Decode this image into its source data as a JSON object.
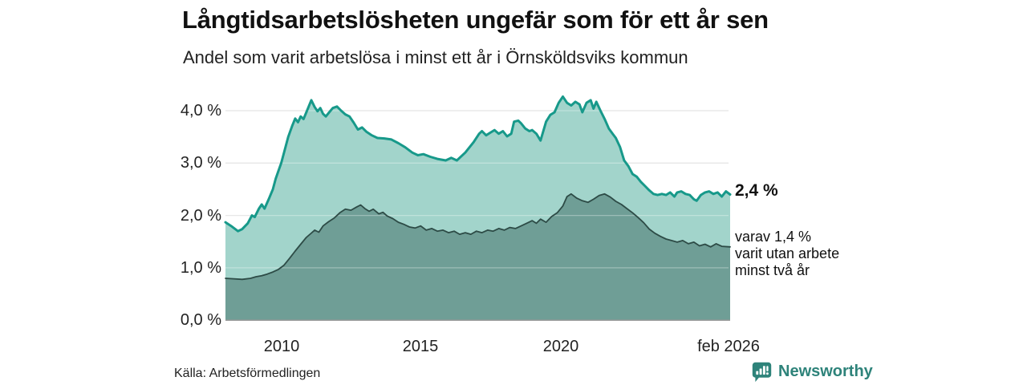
{
  "header": {
    "title": "Långtidsarbetslösheten ungefär som för ett år sen",
    "subtitle": "Andel som varit arbetslösa i minst ett år i Örnsköldsviks kommun"
  },
  "annotations": {
    "total_end_label": "2,4 %",
    "breakdown_lines": [
      "varav 1,4 %",
      "varit utan arbete",
      "minst två år"
    ]
  },
  "footer": {
    "source": "Källa: Arbetsförmedlingen",
    "brand": "Newsworthy"
  },
  "colors": {
    "accent_line": "#17998a",
    "fill_light": "#a2d4cb",
    "fill_dark": "#6f9e96",
    "line_dark": "#2d4b46",
    "grid": "#dcdcdc",
    "grid_overlay": "rgba(255,255,255,0.32)",
    "baseline": "#999999",
    "brand_teal": "#2e837a",
    "text": "#111111"
  },
  "chart_data": {
    "type": "area",
    "title": "Långtidsarbetslösheten ungefär som för ett år sen",
    "subtitle": "Andel som varit arbetslösa i minst ett år i Örnsköldsviks kommun",
    "xlabel": "",
    "ylabel": "",
    "grid": true,
    "xlim": [
      2008.0,
      2026.1
    ],
    "ylim": [
      0,
      4.4
    ],
    "x_ticks": [
      {
        "year": 2010,
        "label": "2010"
      },
      {
        "year": 2015,
        "label": "2015"
      },
      {
        "year": 2020,
        "label": "2020"
      },
      {
        "year": 2026.08,
        "label": "feb 2026"
      }
    ],
    "y_ticks": [
      {
        "value": 4,
        "label": "4,0 %"
      },
      {
        "value": 3,
        "label": "3,0 %"
      },
      {
        "value": 2,
        "label": "2,0 %"
      },
      {
        "value": 1,
        "label": "1,0 %"
      },
      {
        "value": 0,
        "label": "0,0 %"
      }
    ],
    "series": [
      {
        "name": "arbetslösa minst ett år",
        "end_value_label": "2,4 %",
        "fill": "#a2d4cb",
        "line": "#17998a",
        "line_width": 3,
        "points": [
          [
            2008,
            1.87
          ],
          [
            2008.2,
            1.8
          ],
          [
            2008.45,
            1.7
          ],
          [
            2008.6,
            1.74
          ],
          [
            2008.8,
            1.85
          ],
          [
            2008.95,
            2.0
          ],
          [
            2009.05,
            1.97
          ],
          [
            2009.2,
            2.13
          ],
          [
            2009.3,
            2.21
          ],
          [
            2009.4,
            2.13
          ],
          [
            2009.55,
            2.31
          ],
          [
            2009.7,
            2.5
          ],
          [
            2009.8,
            2.7
          ],
          [
            2009.9,
            2.85
          ],
          [
            2010,
            3.0
          ],
          [
            2010.1,
            3.2
          ],
          [
            2010.25,
            3.5
          ],
          [
            2010.4,
            3.72
          ],
          [
            2010.5,
            3.85
          ],
          [
            2010.6,
            3.78
          ],
          [
            2010.7,
            3.89
          ],
          [
            2010.8,
            3.84
          ],
          [
            2010.9,
            3.97
          ],
          [
            2011.08,
            4.2
          ],
          [
            2011.2,
            4.07
          ],
          [
            2011.3,
            3.99
          ],
          [
            2011.4,
            4.05
          ],
          [
            2011.5,
            3.94
          ],
          [
            2011.6,
            3.89
          ],
          [
            2011.72,
            3.97
          ],
          [
            2011.85,
            4.05
          ],
          [
            2012,
            4.08
          ],
          [
            2012.15,
            4.0
          ],
          [
            2012.3,
            3.93
          ],
          [
            2012.45,
            3.89
          ],
          [
            2012.6,
            3.77
          ],
          [
            2012.75,
            3.64
          ],
          [
            2012.9,
            3.68
          ],
          [
            2013.05,
            3.6
          ],
          [
            2013.25,
            3.53
          ],
          [
            2013.45,
            3.48
          ],
          [
            2013.7,
            3.47
          ],
          [
            2013.95,
            3.45
          ],
          [
            2014.2,
            3.38
          ],
          [
            2014.45,
            3.3
          ],
          [
            2014.7,
            3.2
          ],
          [
            2014.9,
            3.15
          ],
          [
            2015.1,
            3.17
          ],
          [
            2015.35,
            3.12
          ],
          [
            2015.6,
            3.08
          ],
          [
            2015.9,
            3.05
          ],
          [
            2016.1,
            3.1
          ],
          [
            2016.3,
            3.05
          ],
          [
            2016.6,
            3.2
          ],
          [
            2016.9,
            3.4
          ],
          [
            2017.1,
            3.56
          ],
          [
            2017.2,
            3.61
          ],
          [
            2017.35,
            3.53
          ],
          [
            2017.5,
            3.58
          ],
          [
            2017.65,
            3.63
          ],
          [
            2017.8,
            3.56
          ],
          [
            2017.95,
            3.61
          ],
          [
            2018.1,
            3.51
          ],
          [
            2018.25,
            3.56
          ],
          [
            2018.35,
            3.79
          ],
          [
            2018.5,
            3.81
          ],
          [
            2018.6,
            3.76
          ],
          [
            2018.75,
            3.66
          ],
          [
            2018.9,
            3.61
          ],
          [
            2019,
            3.63
          ],
          [
            2019.15,
            3.56
          ],
          [
            2019.3,
            3.43
          ],
          [
            2019.5,
            3.79
          ],
          [
            2019.65,
            3.92
          ],
          [
            2019.8,
            3.97
          ],
          [
            2019.95,
            4.15
          ],
          [
            2020.1,
            4.27
          ],
          [
            2020.25,
            4.15
          ],
          [
            2020.4,
            4.1
          ],
          [
            2020.55,
            4.17
          ],
          [
            2020.7,
            4.12
          ],
          [
            2020.8,
            3.97
          ],
          [
            2020.95,
            4.15
          ],
          [
            2021.1,
            4.2
          ],
          [
            2021.2,
            4.04
          ],
          [
            2021.3,
            4.17
          ],
          [
            2021.45,
            4.0
          ],
          [
            2021.6,
            3.84
          ],
          [
            2021.75,
            3.66
          ],
          [
            2021.9,
            3.55
          ],
          [
            2022,
            3.48
          ],
          [
            2022.15,
            3.31
          ],
          [
            2022.3,
            3.05
          ],
          [
            2022.45,
            2.94
          ],
          [
            2022.6,
            2.79
          ],
          [
            2022.75,
            2.74
          ],
          [
            2022.9,
            2.64
          ],
          [
            2023.05,
            2.56
          ],
          [
            2023.2,
            2.48
          ],
          [
            2023.35,
            2.41
          ],
          [
            2023.5,
            2.39
          ],
          [
            2023.65,
            2.41
          ],
          [
            2023.8,
            2.39
          ],
          [
            2023.95,
            2.44
          ],
          [
            2024.1,
            2.36
          ],
          [
            2024.2,
            2.44
          ],
          [
            2024.35,
            2.46
          ],
          [
            2024.5,
            2.41
          ],
          [
            2024.65,
            2.39
          ],
          [
            2024.8,
            2.31
          ],
          [
            2024.9,
            2.28
          ],
          [
            2025.05,
            2.39
          ],
          [
            2025.2,
            2.44
          ],
          [
            2025.35,
            2.46
          ],
          [
            2025.5,
            2.41
          ],
          [
            2025.65,
            2.44
          ],
          [
            2025.8,
            2.36
          ],
          [
            2025.95,
            2.46
          ],
          [
            2026.1,
            2.4
          ]
        ]
      },
      {
        "name": "varav utan arbete minst två år",
        "end_value_label": "1,4 %",
        "fill": "#6f9e96",
        "line": "#2d4b46",
        "line_width": 1.8,
        "points": [
          [
            2008,
            0.8
          ],
          [
            2008.3,
            0.79
          ],
          [
            2008.6,
            0.78
          ],
          [
            2008.9,
            0.8
          ],
          [
            2009.1,
            0.83
          ],
          [
            2009.3,
            0.85
          ],
          [
            2009.5,
            0.88
          ],
          [
            2009.7,
            0.92
          ],
          [
            2009.9,
            0.97
          ],
          [
            2010.1,
            1.05
          ],
          [
            2010.3,
            1.18
          ],
          [
            2010.5,
            1.32
          ],
          [
            2010.7,
            1.45
          ],
          [
            2010.9,
            1.58
          ],
          [
            2011.05,
            1.65
          ],
          [
            2011.2,
            1.72
          ],
          [
            2011.35,
            1.68
          ],
          [
            2011.5,
            1.8
          ],
          [
            2011.7,
            1.88
          ],
          [
            2011.9,
            1.95
          ],
          [
            2012.1,
            2.05
          ],
          [
            2012.3,
            2.12
          ],
          [
            2012.5,
            2.1
          ],
          [
            2012.7,
            2.16
          ],
          [
            2012.85,
            2.2
          ],
          [
            2013,
            2.13
          ],
          [
            2013.15,
            2.08
          ],
          [
            2013.3,
            2.12
          ],
          [
            2013.5,
            2.03
          ],
          [
            2013.65,
            2.06
          ],
          [
            2013.8,
            1.99
          ],
          [
            2014,
            1.94
          ],
          [
            2014.2,
            1.87
          ],
          [
            2014.4,
            1.83
          ],
          [
            2014.6,
            1.78
          ],
          [
            2014.8,
            1.76
          ],
          [
            2015,
            1.8
          ],
          [
            2015.2,
            1.72
          ],
          [
            2015.4,
            1.75
          ],
          [
            2015.6,
            1.7
          ],
          [
            2015.8,
            1.72
          ],
          [
            2016,
            1.67
          ],
          [
            2016.2,
            1.7
          ],
          [
            2016.4,
            1.64
          ],
          [
            2016.6,
            1.67
          ],
          [
            2016.8,
            1.64
          ],
          [
            2017,
            1.7
          ],
          [
            2017.2,
            1.67
          ],
          [
            2017.4,
            1.72
          ],
          [
            2017.6,
            1.7
          ],
          [
            2017.8,
            1.75
          ],
          [
            2018,
            1.72
          ],
          [
            2018.2,
            1.77
          ],
          [
            2018.4,
            1.75
          ],
          [
            2018.6,
            1.8
          ],
          [
            2018.8,
            1.85
          ],
          [
            2019,
            1.9
          ],
          [
            2019.15,
            1.85
          ],
          [
            2019.3,
            1.93
          ],
          [
            2019.5,
            1.87
          ],
          [
            2019.7,
            1.98
          ],
          [
            2019.9,
            2.05
          ],
          [
            2020.1,
            2.18
          ],
          [
            2020.25,
            2.36
          ],
          [
            2020.4,
            2.41
          ],
          [
            2020.6,
            2.33
          ],
          [
            2020.8,
            2.28
          ],
          [
            2021,
            2.25
          ],
          [
            2021.2,
            2.31
          ],
          [
            2021.4,
            2.38
          ],
          [
            2021.6,
            2.41
          ],
          [
            2021.8,
            2.35
          ],
          [
            2022,
            2.27
          ],
          [
            2022.2,
            2.21
          ],
          [
            2022.4,
            2.13
          ],
          [
            2022.6,
            2.05
          ],
          [
            2022.8,
            1.96
          ],
          [
            2023,
            1.86
          ],
          [
            2023.2,
            1.74
          ],
          [
            2023.4,
            1.66
          ],
          [
            2023.6,
            1.6
          ],
          [
            2023.8,
            1.55
          ],
          [
            2024,
            1.52
          ],
          [
            2024.2,
            1.49
          ],
          [
            2024.4,
            1.52
          ],
          [
            2024.6,
            1.46
          ],
          [
            2024.8,
            1.49
          ],
          [
            2025,
            1.42
          ],
          [
            2025.2,
            1.45
          ],
          [
            2025.4,
            1.4
          ],
          [
            2025.6,
            1.46
          ],
          [
            2025.8,
            1.41
          ],
          [
            2026.1,
            1.4
          ]
        ]
      }
    ]
  }
}
